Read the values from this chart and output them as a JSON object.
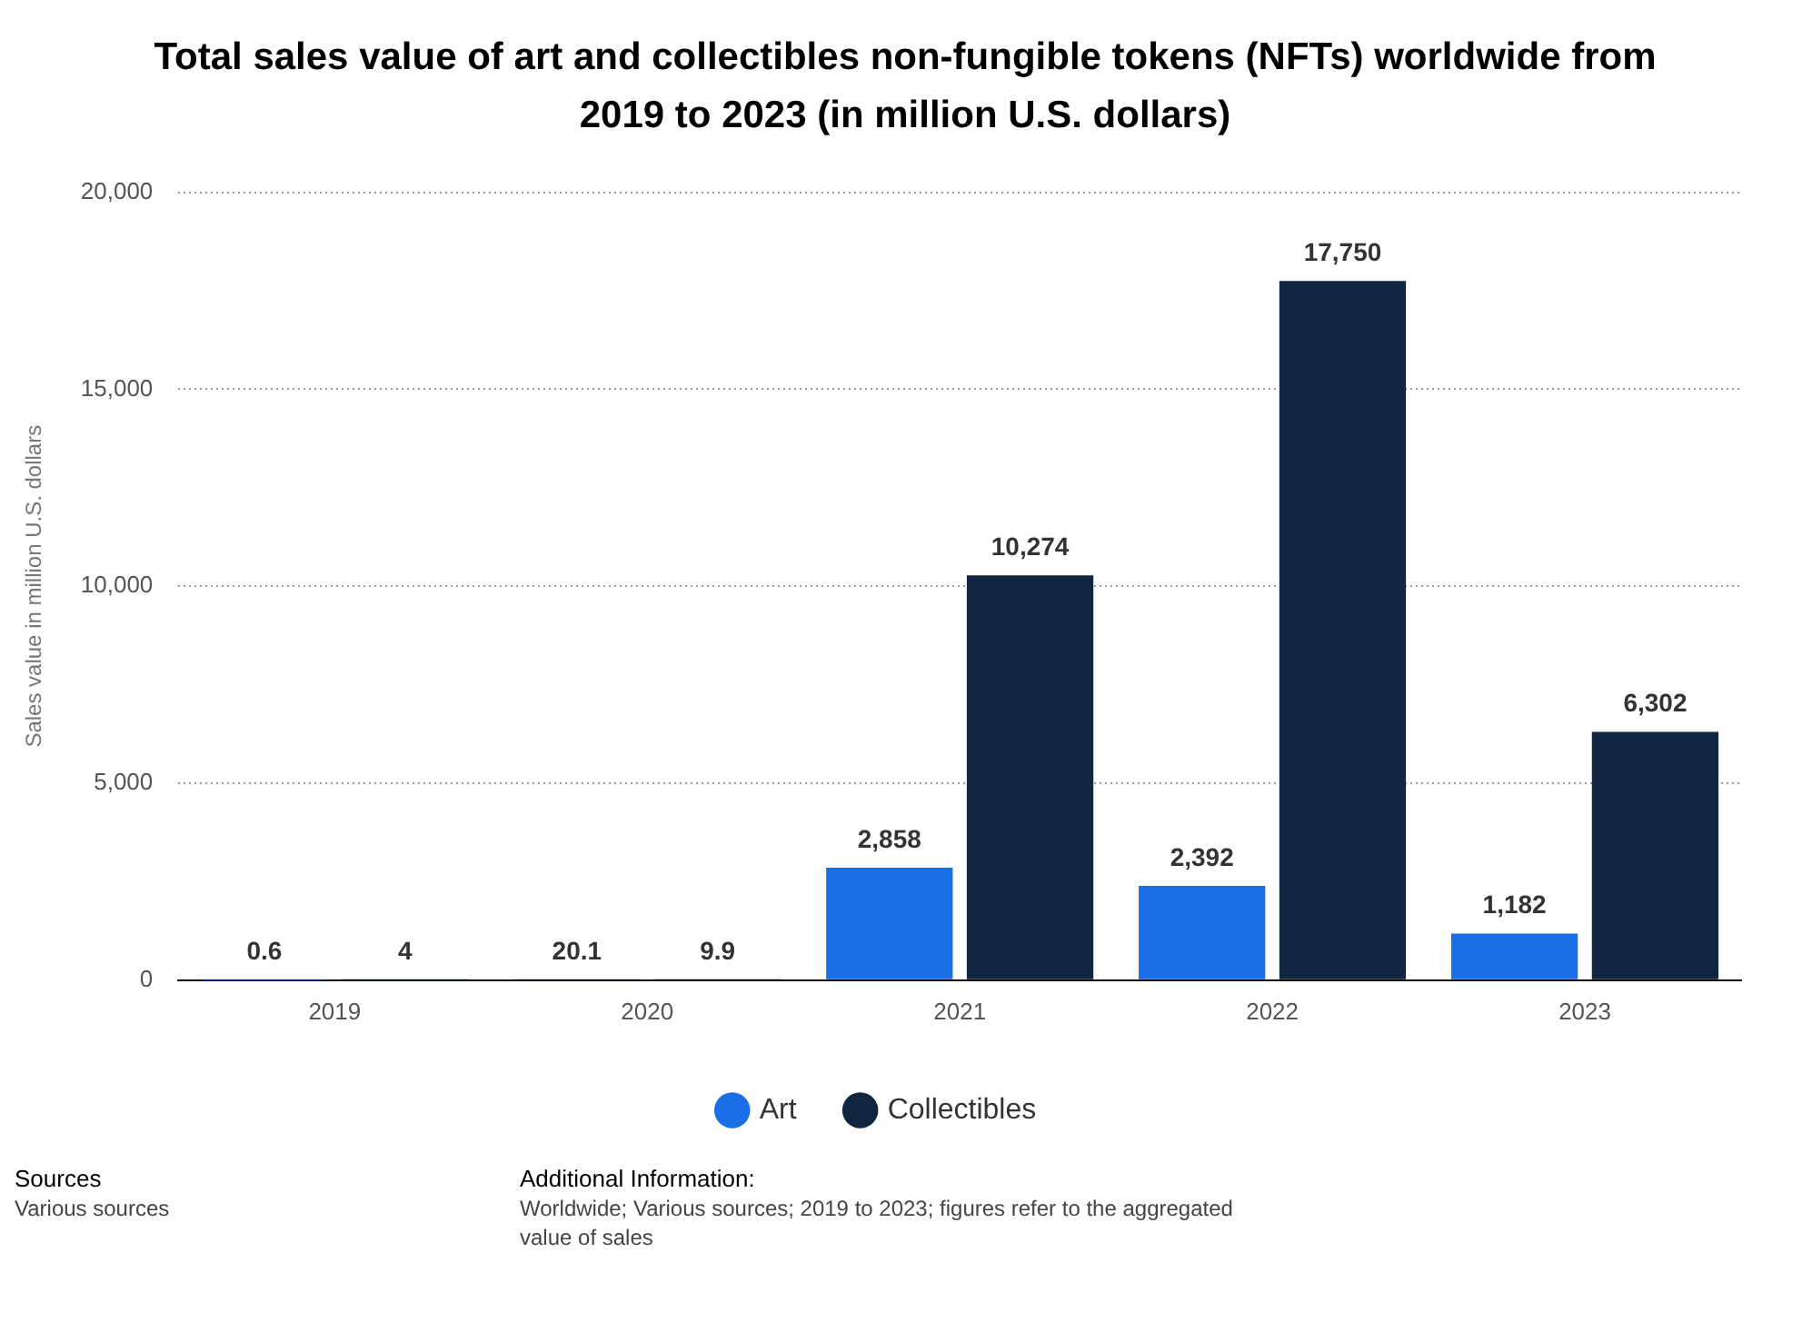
{
  "chart_data": {
    "type": "bar",
    "title": "Total sales value of art and collectibles non-fungible tokens (NFTs) worldwide from 2019 to 2023 (in million U.S. dollars)",
    "ylabel": "Sales value in million U.S. dollars",
    "categories": [
      "2019",
      "2020",
      "2021",
      "2022",
      "2023"
    ],
    "series": [
      {
        "name": "Art",
        "color": "#1a6ee8",
        "values": [
          0.6,
          20.1,
          2858,
          2392,
          1182
        ],
        "value_labels": [
          "0.6",
          "20.1",
          "2,858",
          "2,392",
          "1,182"
        ]
      },
      {
        "name": "Collectibles",
        "color": "#10253f",
        "values": [
          4,
          9.9,
          10274,
          17750,
          6302
        ],
        "value_labels": [
          "4",
          "9.9",
          "10,274",
          "17,750",
          "6,302"
        ]
      }
    ],
    "ylim": [
      0,
      20000
    ],
    "yticks": [
      {
        "value": 0,
        "label": "0"
      },
      {
        "value": 5000,
        "label": "5,000"
      },
      {
        "value": 10000,
        "label": "10,000"
      },
      {
        "value": 15000,
        "label": "15,000"
      },
      {
        "value": 20000,
        "label": "20,000"
      }
    ],
    "grid": "y",
    "legend": "bottom",
    "annotations": [
      "Sources",
      "Various sources",
      "Additional Information:",
      "Worldwide; Various sources; 2019 to 2023; figures refer to the aggregated value of sales"
    ]
  }
}
